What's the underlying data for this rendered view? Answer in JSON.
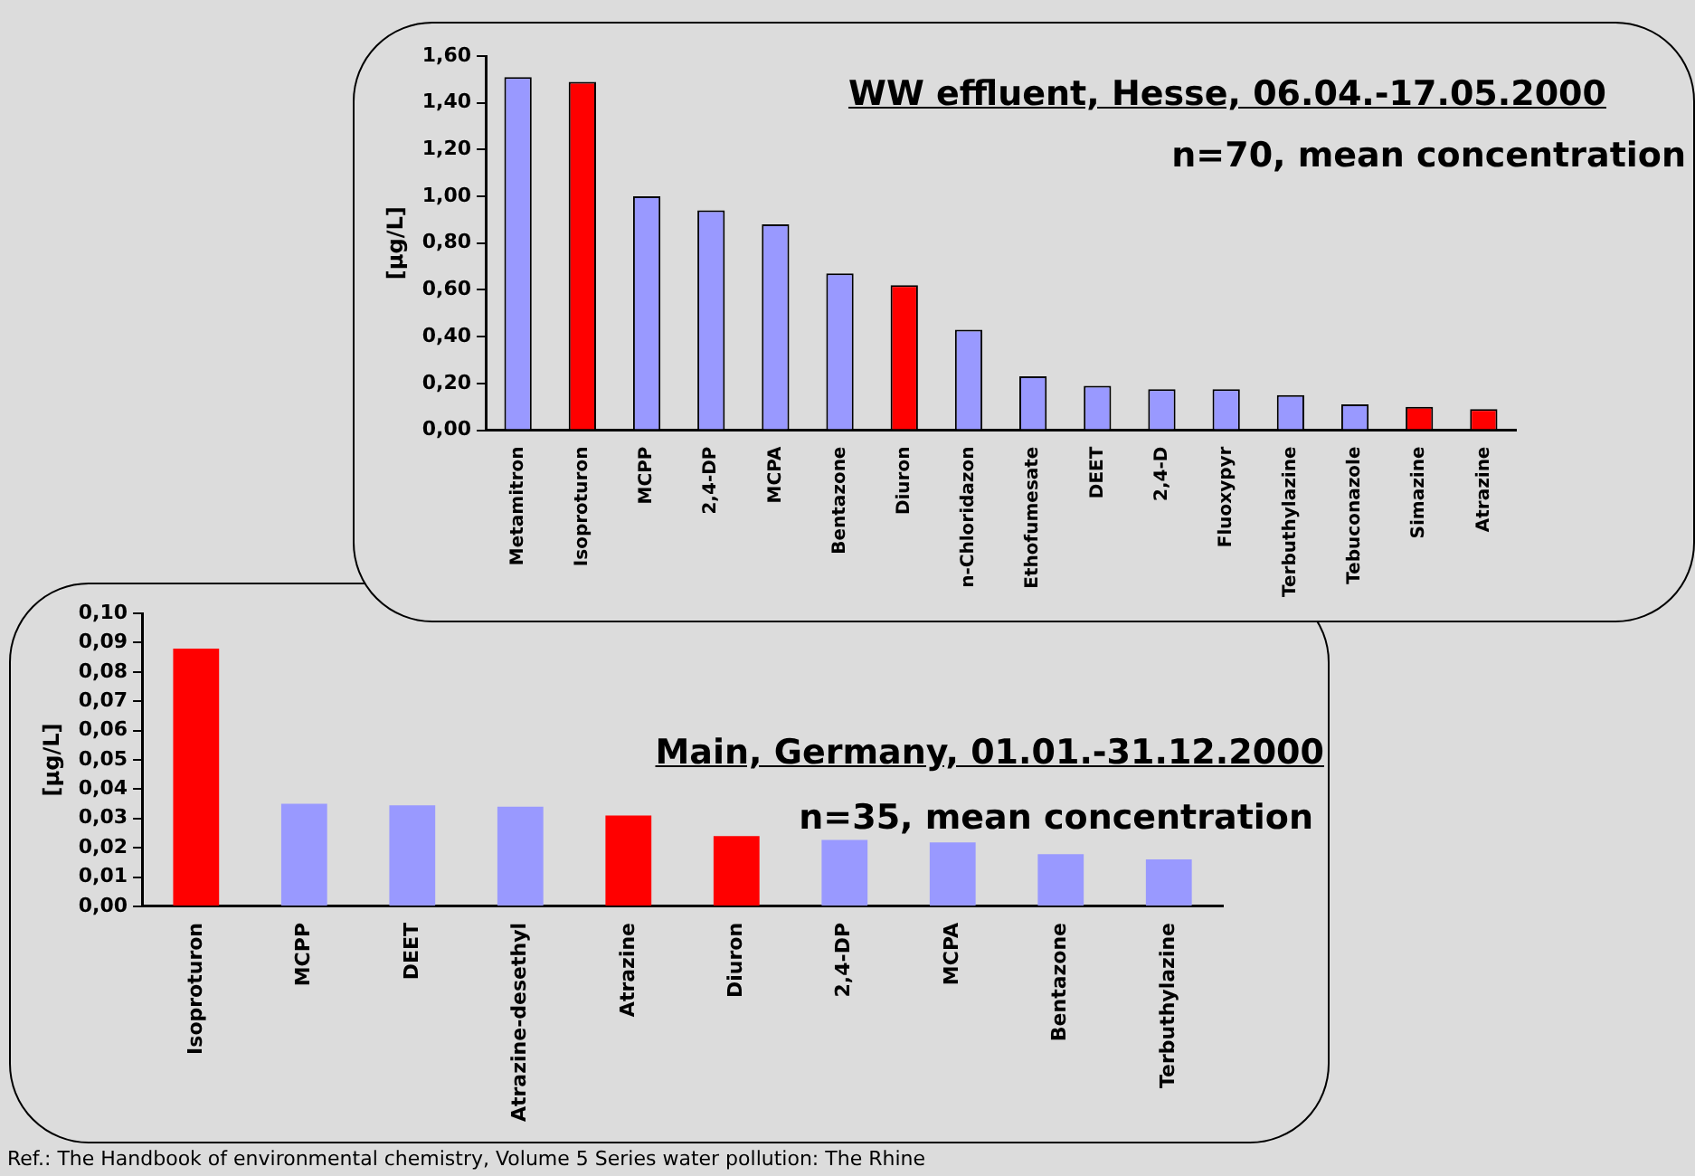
{
  "chart_data": [
    {
      "type": "bar",
      "title": "WW effluent, Hesse, 06.04.-17.05.2000",
      "subtitle": "n=70, mean concentration",
      "ylabel": "[µg/L]",
      "categories": [
        "Metamitron",
        "Isoproturon",
        "MCPP",
        "2,4-DP",
        "MCPA",
        "Bentazone",
        "Diuron",
        "n-Chloridazon",
        "Ethofumesate",
        "DEET",
        "2,4-D",
        "Fluoxypyr",
        "Terbuthylazine",
        "Tebuconazole",
        "Simazine",
        "Atrazine"
      ],
      "values": [
        1.51,
        1.49,
        1.0,
        0.94,
        0.88,
        0.67,
        0.62,
        0.43,
        0.23,
        0.19,
        0.175,
        0.175,
        0.15,
        0.11,
        0.1,
        0.09
      ],
      "colors": [
        "#9999ff",
        "#ff0000",
        "#9999ff",
        "#9999ff",
        "#9999ff",
        "#9999ff",
        "#ff0000",
        "#9999ff",
        "#9999ff",
        "#9999ff",
        "#9999ff",
        "#9999ff",
        "#9999ff",
        "#9999ff",
        "#ff0000",
        "#ff0000"
      ],
      "ylim": [
        0,
        1.6
      ],
      "yticks": [
        {
          "value": 0,
          "label": "0,00"
        },
        {
          "value": 0.2,
          "label": "0,20"
        },
        {
          "value": 0.4,
          "label": "0,40"
        },
        {
          "value": 0.6,
          "label": "0,60"
        },
        {
          "value": 0.8,
          "label": "0,80"
        },
        {
          "value": 1.0,
          "label": "1,00"
        },
        {
          "value": 1.2,
          "label": "1,20"
        },
        {
          "value": 1.4,
          "label": "1,40"
        },
        {
          "value": 1.6,
          "label": "1,60"
        }
      ],
      "grid": false,
      "legend": false
    },
    {
      "type": "bar",
      "title": "Main, Germany, 01.01.-31.12.2000",
      "subtitle": "n=35, mean concentration",
      "ylabel": "[µg/L]",
      "categories": [
        "Isoproturon",
        "MCPP",
        "DEET",
        "Atrazine-desethyl",
        "Atrazine",
        "Diuron",
        "2,4-DP",
        "MCPA",
        "Bentazone",
        "Terbuthylazine"
      ],
      "values": [
        0.088,
        0.035,
        0.0345,
        0.034,
        0.031,
        0.024,
        0.0227,
        0.0218,
        0.0178,
        0.016
      ],
      "colors": [
        "#ff0000",
        "#9999ff",
        "#9999ff",
        "#9999ff",
        "#ff0000",
        "#ff0000",
        "#9999ff",
        "#9999ff",
        "#9999ff",
        "#9999ff"
      ],
      "ylim": [
        0,
        0.1
      ],
      "yticks": [
        {
          "value": 0,
          "label": "0,00"
        },
        {
          "value": 0.01,
          "label": "0,01"
        },
        {
          "value": 0.02,
          "label": "0,02"
        },
        {
          "value": 0.03,
          "label": "0,03"
        },
        {
          "value": 0.04,
          "label": "0,04"
        },
        {
          "value": 0.05,
          "label": "0,05"
        },
        {
          "value": 0.06,
          "label": "0,06"
        },
        {
          "value": 0.07,
          "label": "0,07"
        },
        {
          "value": 0.08,
          "label": "0,08"
        },
        {
          "value": 0.09,
          "label": "0,09"
        },
        {
          "value": 0.1,
          "label": "0,10"
        }
      ],
      "grid": false,
      "legend": false,
      "annotations": [
        "Ref.: The Handbook of environmental chemistry, Volume 5 Series water pollution: The Rhine"
      ]
    }
  ]
}
